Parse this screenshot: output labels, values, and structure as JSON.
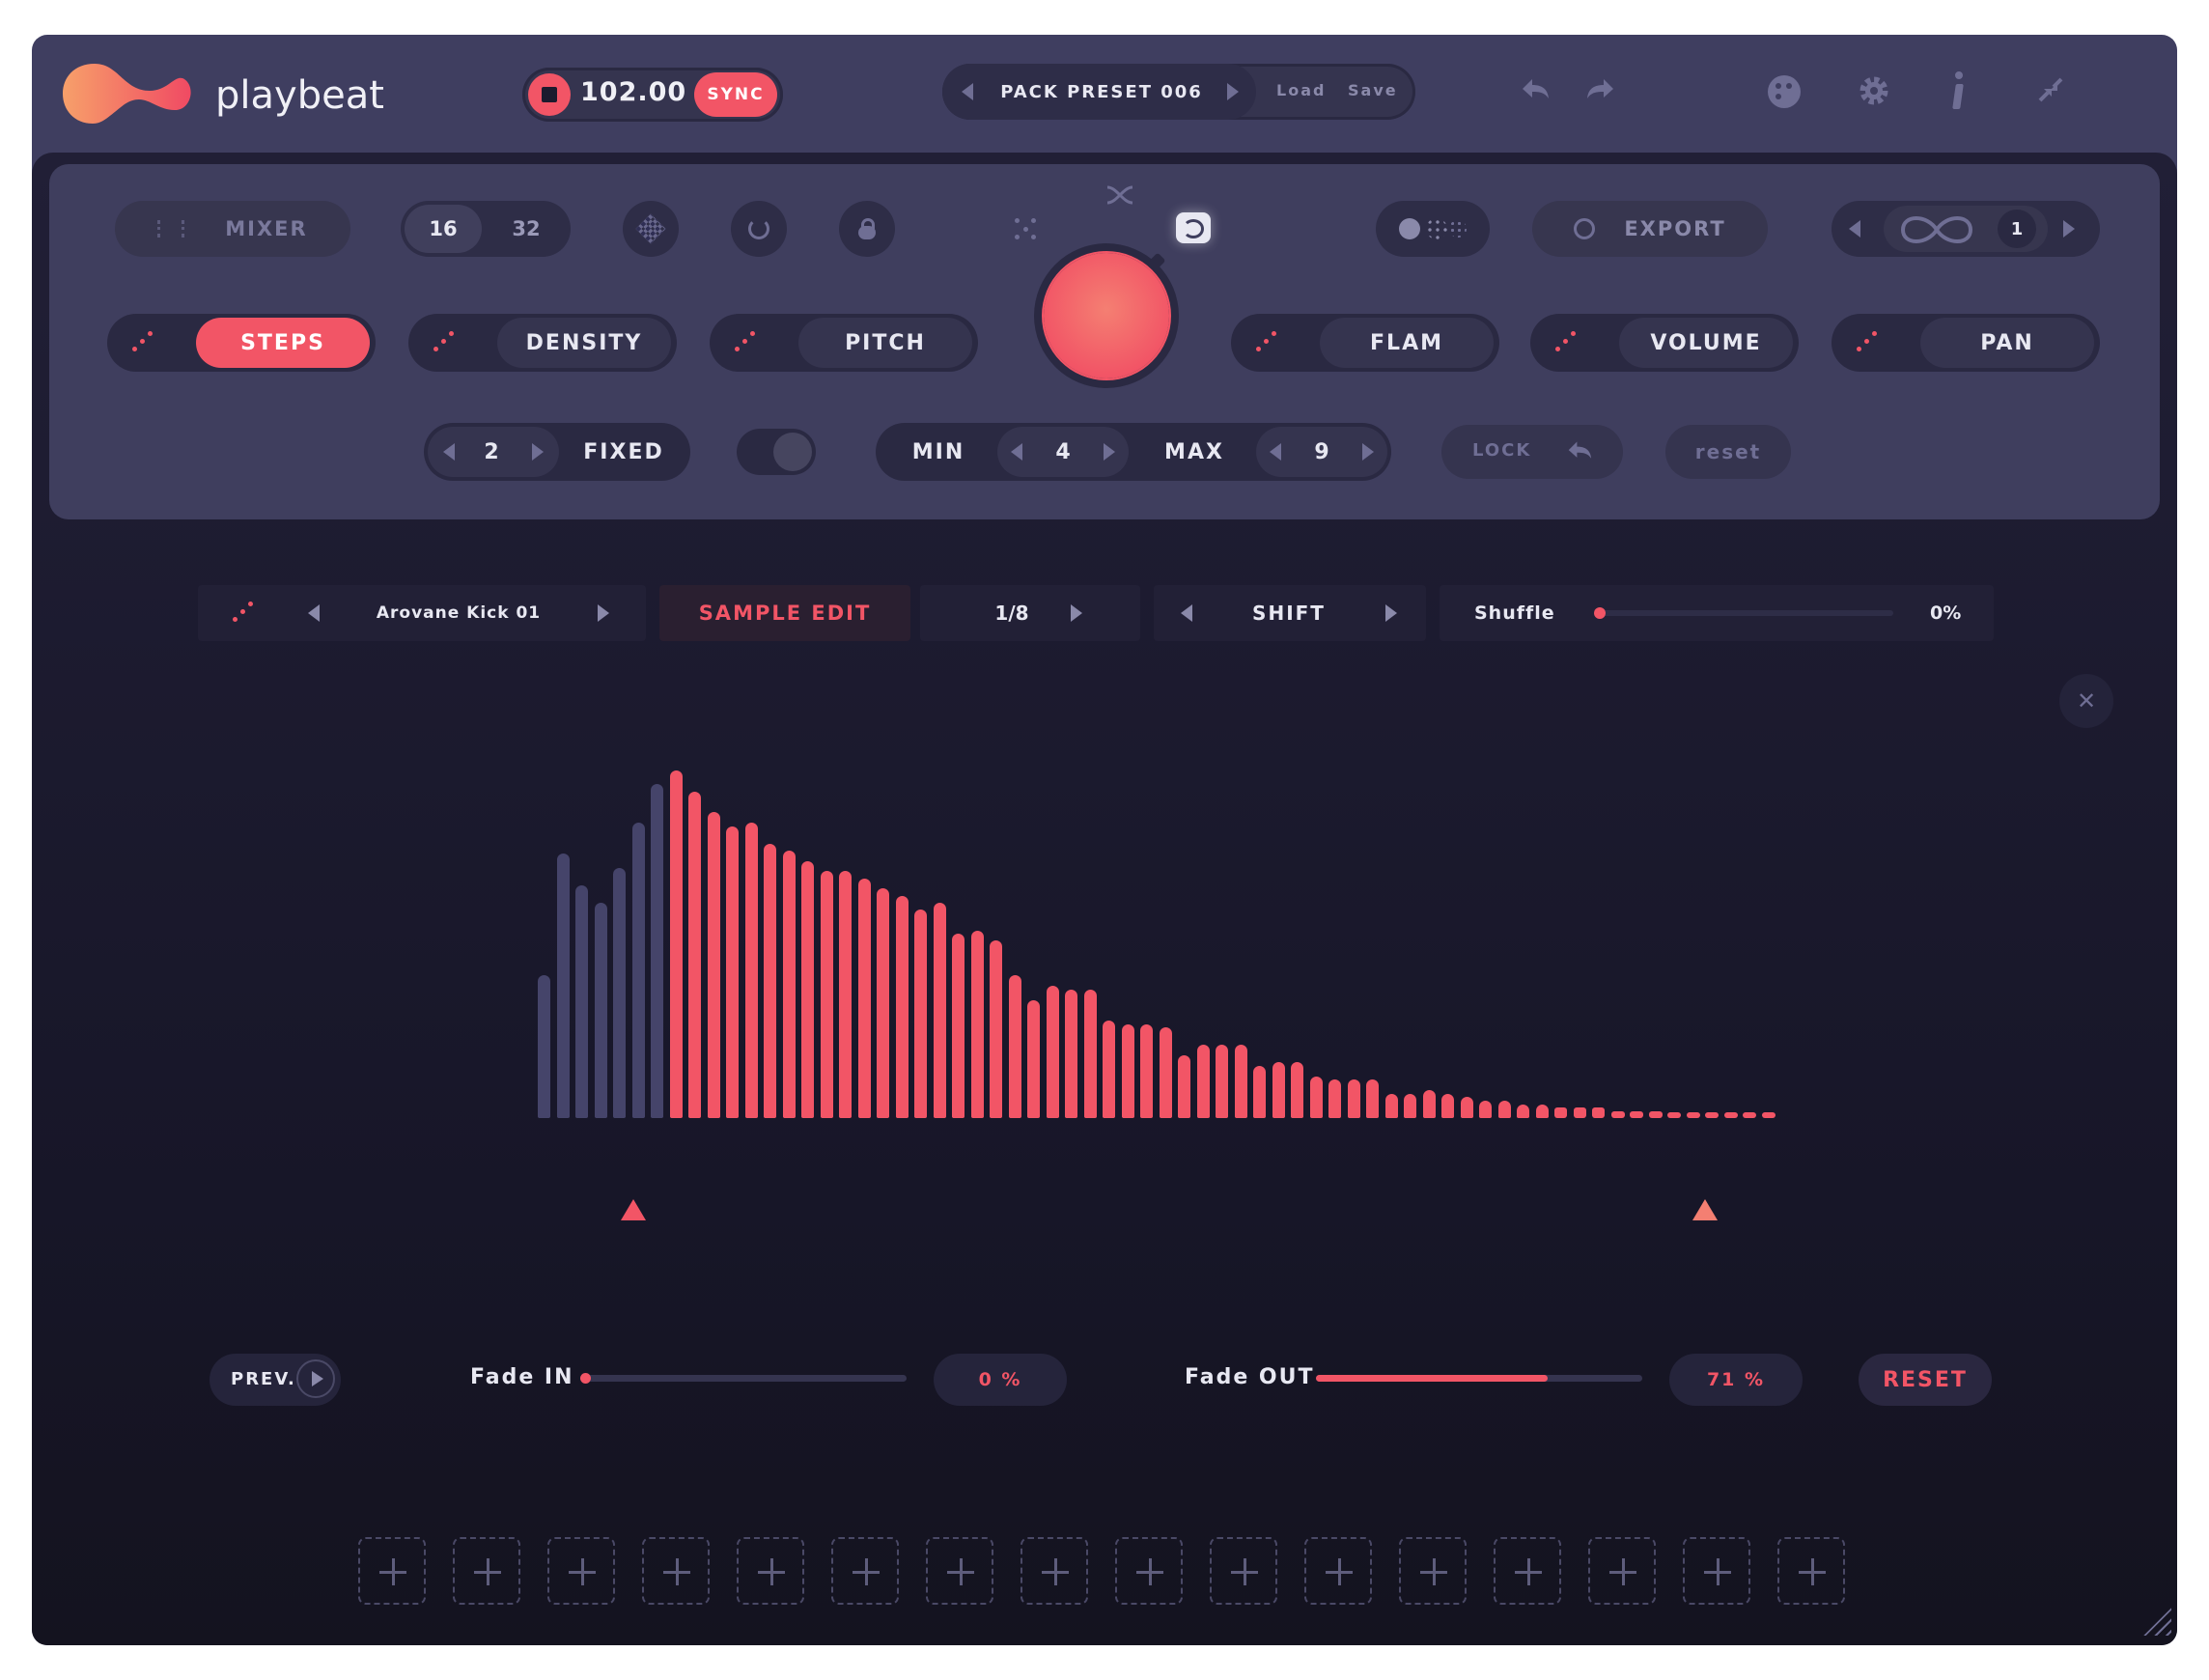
{
  "app": {
    "name": "playbeat"
  },
  "transport": {
    "tempo": "102.00",
    "sync_label": "SYNC"
  },
  "preset": {
    "name": "PACK PRESET 006",
    "load_label": "Load",
    "save_label": "Save"
  },
  "panel": {
    "mixer_label": "MIXER",
    "steps_toggle": [
      "16",
      "32"
    ],
    "export_label": "EXPORT",
    "loop_count": "1",
    "tabs": [
      {
        "label": "STEPS",
        "active": true
      },
      {
        "label": "DENSITY",
        "active": false
      },
      {
        "label": "PITCH",
        "active": false
      },
      {
        "label": "FLAM",
        "active": false
      },
      {
        "label": "VOLUME",
        "active": false
      },
      {
        "label": "PAN",
        "active": false
      }
    ],
    "steps_value": "2",
    "fixed_label": "FIXED",
    "min_label": "MIN",
    "min_value": "4",
    "max_label": "MAX",
    "max_value": "9",
    "lock_label": "LOCK",
    "reset_label": "reset"
  },
  "sample_bar": {
    "sample_name": "Arovane Kick 01",
    "sample_edit_label": "SAMPLE EDIT",
    "division": "1/8",
    "shift_label": "SHIFT",
    "shuffle_label": "Shuffle",
    "shuffle_value": "0%",
    "shuffle_fraction": 0.0
  },
  "waveform": {
    "start_index": 7,
    "heights": [
      0.41,
      0.76,
      0.67,
      0.62,
      0.72,
      0.85,
      0.96,
      1.0,
      0.94,
      0.88,
      0.84,
      0.85,
      0.79,
      0.77,
      0.74,
      0.71,
      0.71,
      0.69,
      0.66,
      0.64,
      0.6,
      0.62,
      0.53,
      0.54,
      0.51,
      0.41,
      0.34,
      0.38,
      0.37,
      0.37,
      0.28,
      0.27,
      0.27,
      0.26,
      0.18,
      0.21,
      0.21,
      0.21,
      0.15,
      0.16,
      0.16,
      0.12,
      0.11,
      0.11,
      0.11,
      0.07,
      0.07,
      0.08,
      0.07,
      0.06,
      0.05,
      0.05,
      0.04,
      0.04,
      0.03,
      0.03,
      0.03,
      0.02,
      0.02,
      0.02,
      0.01,
      0.01,
      0.01,
      0.01,
      0.01,
      0.01
    ]
  },
  "fade": {
    "preview_label": "PREV.",
    "fade_in_label": "Fade IN",
    "fade_in_value": "0 %",
    "fade_in_fraction": 0.0,
    "fade_out_label": "Fade OUT",
    "fade_out_value": "71 %",
    "fade_out_fraction": 0.71,
    "reset_label": "RESET"
  },
  "colors": {
    "accent": "#f25566",
    "background": "#3f3e60",
    "panel": "#3f3e5e",
    "dark": "#171628"
  }
}
